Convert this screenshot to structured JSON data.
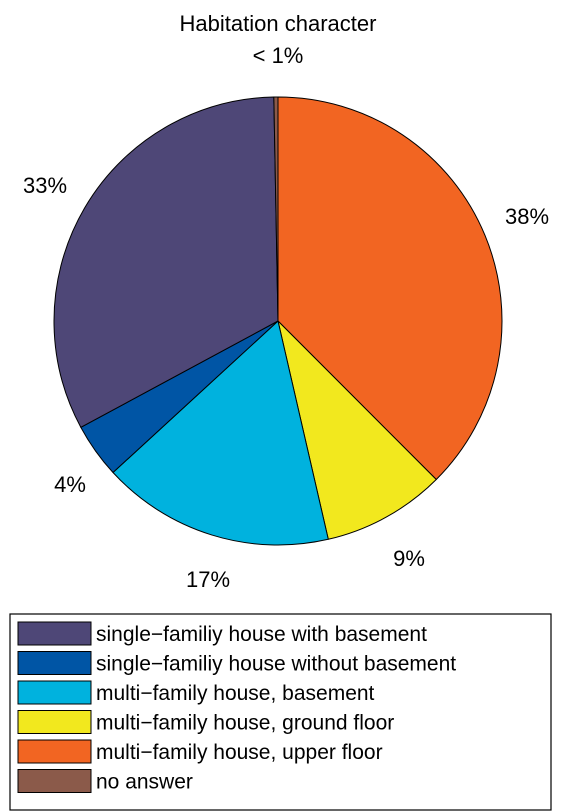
{
  "chart_data": {
    "type": "pie",
    "title": "Habitation character",
    "slices": [
      {
        "label": "multi−family house, upper floor",
        "value": 38,
        "value_label": "38%",
        "color": "#f26522"
      },
      {
        "label": "multi−family house, ground floor",
        "value": 9,
        "value_label": "9%",
        "color": "#f2e81e"
      },
      {
        "label": "multi−family house, basement",
        "value": 17,
        "value_label": "17%",
        "color": "#00b2de"
      },
      {
        "label": "single−familiy house without basement",
        "value": 4,
        "value_label": "4%",
        "color": "#0055a5"
      },
      {
        "label": "single−familiy house with basement",
        "value": 33,
        "value_label": "33%",
        "color": "#4e4777"
      },
      {
        "label": "no answer",
        "value": 0.3,
        "value_label": "< 1%",
        "color": "#8b5a4a"
      }
    ],
    "legend": {
      "placement": "bottom",
      "entries": [
        {
          "label": "single−familiy house with basement",
          "color": "#4e4777"
        },
        {
          "label": "single−familiy house without basement",
          "color": "#0055a5"
        },
        {
          "label": "multi−family house, basement",
          "color": "#00b2de"
        },
        {
          "label": "multi−family house, ground floor",
          "color": "#f2e81e"
        },
        {
          "label": "multi−family house, upper floor",
          "color": "#f26522"
        },
        {
          "label": "no answer",
          "color": "#8b5a4a"
        }
      ]
    }
  }
}
